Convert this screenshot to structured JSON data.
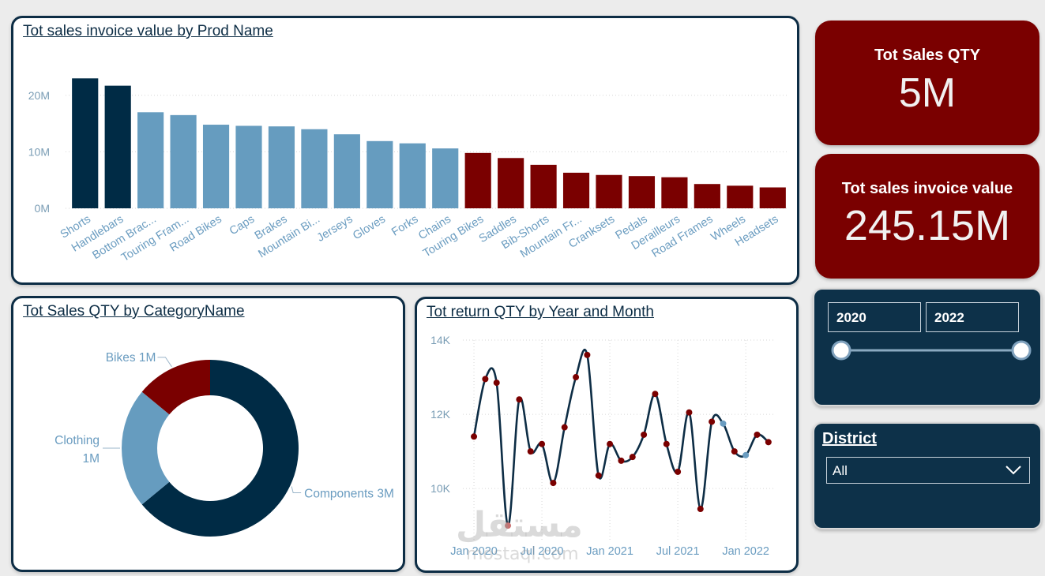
{
  "colors": {
    "dark_blue": "#002b45",
    "light_blue": "#669cbf",
    "dark_red": "#7a0000",
    "navy_border": "#0d2d45"
  },
  "bar_card": {
    "title": "Tot sales invoice value by Prod Name"
  },
  "donut_card": {
    "title": "Tot Sales QTY by CategoryName"
  },
  "line_card": {
    "title": "Tot return QTY by Year and Month"
  },
  "kpi_qty": {
    "label": "Tot Sales QTY",
    "value": "5M"
  },
  "kpi_invoice": {
    "label": "Tot sales invoice value",
    "value": "245.15M"
  },
  "year_slider": {
    "from": "2020",
    "to": "2022",
    "range_fraction": [
      0,
      1
    ]
  },
  "district_slicer": {
    "label": "District",
    "selected": "All",
    "icon": "chevron-down-icon"
  },
  "watermark": {
    "arabic": "مستقل",
    "latin": "mostaql.com"
  },
  "chart_data": [
    {
      "type": "bar",
      "title": "Tot sales invoice value by Prod Name",
      "categories": [
        "Shorts",
        "Handlebars",
        "Bottom Brac...",
        "Touring Fram...",
        "Road Bikes",
        "Caps",
        "Brakes",
        "Mountain Bi...",
        "Jerseys",
        "Gloves",
        "Forks",
        "Chains",
        "Touring Bikes",
        "Saddles",
        "Bib-Shorts",
        "Mountain Fr...",
        "Cranksets",
        "Pedals",
        "Derailleurs",
        "Road Frames",
        "Wheels",
        "Headsets"
      ],
      "values": [
        23.0,
        21.7,
        17.0,
        16.5,
        14.8,
        14.6,
        14.5,
        14.0,
        13.1,
        11.9,
        11.5,
        10.6,
        9.8,
        8.9,
        7.7,
        6.3,
        5.9,
        5.7,
        5.5,
        4.3,
        4.0,
        3.7
      ],
      "color_groups": [
        "dark_blue",
        "dark_blue",
        "light_blue",
        "light_blue",
        "light_blue",
        "light_blue",
        "light_blue",
        "light_blue",
        "light_blue",
        "light_blue",
        "light_blue",
        "light_blue",
        "dark_red",
        "dark_red",
        "dark_red",
        "dark_red",
        "dark_red",
        "dark_red",
        "dark_red",
        "dark_red",
        "dark_red",
        "dark_red"
      ],
      "yticks": [
        "0M",
        "10M",
        "20M"
      ],
      "ytick_values": [
        0,
        10,
        20
      ],
      "ylim": [
        0,
        25
      ],
      "grid": true
    },
    {
      "type": "pie",
      "title": "Tot Sales QTY by CategoryName",
      "donut": true,
      "slices": [
        {
          "name": "Components",
          "label": "Components 3M",
          "value": 0.64,
          "color": "#002b45"
        },
        {
          "name": "Clothing",
          "label_line1": "Clothing",
          "label_line2": "1M",
          "value": 0.22,
          "color": "#669cbf"
        },
        {
          "name": "Bikes",
          "label": "Bikes 1M",
          "value": 0.14,
          "color": "#7a0000"
        }
      ]
    },
    {
      "type": "line",
      "title": "Tot return QTY by Year and Month",
      "x": [
        0,
        1,
        2,
        3,
        4,
        5,
        6,
        7,
        8,
        9,
        10,
        11,
        12,
        13,
        14,
        15,
        16,
        17,
        18,
        19,
        20,
        21,
        22,
        23,
        24,
        25,
        26
      ],
      "values": [
        11400,
        12950,
        12850,
        9000,
        12400,
        11000,
        11200,
        10150,
        11650,
        13000,
        13600,
        10350,
        11200,
        10750,
        10850,
        11450,
        12550,
        11200,
        10450,
        12050,
        9450,
        11800,
        11750,
        11000,
        10900,
        11450,
        11250
      ],
      "marker_colors": [
        "#7a0000",
        "#7a0000",
        "#7a0000",
        "#c97070",
        "#7a0000",
        "#7a0000",
        "#7a0000",
        "#7a0000",
        "#7a0000",
        "#7a0000",
        "#7a0000",
        "#7a0000",
        "#7a0000",
        "#7a0000",
        "#7a0000",
        "#7a0000",
        "#7a0000",
        "#7a0000",
        "#7a0000",
        "#7a0000",
        "#7a0000",
        "#7a0000",
        "#6a9cc0",
        "#7a0000",
        "#6a9cc0",
        "#7a0000",
        "#7a0000"
      ],
      "xticks": [
        "Jan 2020",
        "Jul 2020",
        "Jan 2021",
        "Jul 2021",
        "Jan 2022"
      ],
      "xtick_positions": [
        0,
        6,
        12,
        18,
        24
      ],
      "yticks": [
        "10K",
        "12K",
        "14K"
      ],
      "ytick_values": [
        10000,
        12000,
        14000
      ],
      "ylim": [
        8600,
        14000
      ],
      "xlim": [
        -0.7,
        26.5
      ],
      "grid": true
    }
  ]
}
